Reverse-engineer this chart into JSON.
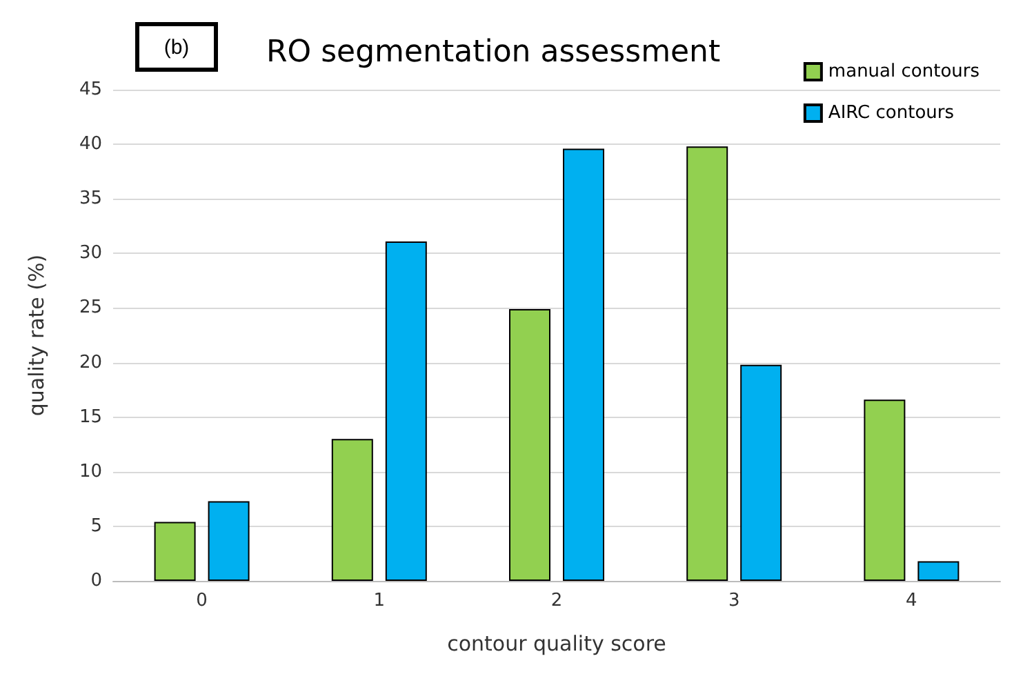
{
  "chart_data": {
    "type": "bar",
    "title": "RO segmentation assessment",
    "annotations": [
      "(b)"
    ],
    "xlabel": "contour quality score",
    "ylabel": "quality rate (%)",
    "categories": [
      "0",
      "1",
      "2",
      "3",
      "4"
    ],
    "series": [
      {
        "name": "manual contours",
        "color": "#92d050",
        "values": [
          5.4,
          13.0,
          24.9,
          39.8,
          16.6
        ]
      },
      {
        "name": "AIRC contours",
        "color": "#00b0f0",
        "values": [
          7.3,
          31.1,
          39.6,
          19.8,
          1.8
        ]
      }
    ],
    "ylim": [
      0,
      45
    ],
    "yticks": [
      0,
      5,
      10,
      15,
      20,
      25,
      30,
      35,
      40,
      45
    ],
    "grid": "y",
    "legend": "top right"
  }
}
